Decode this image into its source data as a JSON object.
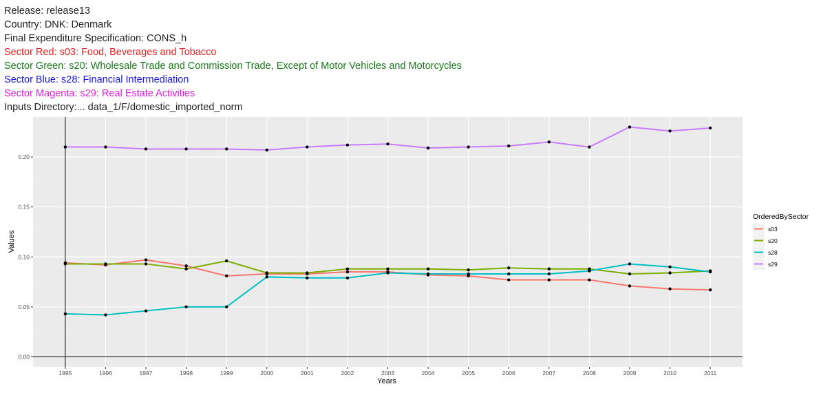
{
  "header": {
    "release": "Release: release13",
    "country": "Country: DNK: Denmark",
    "final_spec": "Final Expenditure Specification: CONS_h",
    "sector_red": "Sector Red: s03: Food, Beverages and Tobacco",
    "sector_green": "Sector Green: s20: Wholesale Trade and Commission Trade, Except of Motor Vehicles and Motorcycles",
    "sector_blue": "Sector Blue: s28: Financial Intermediation",
    "sector_magenta": "Sector Magenta: s29: Real Estate Activities",
    "inputs_dir": "Inputs Directory:... data_1/F/domestic_imported_norm"
  },
  "colors": {
    "red": "#e8201f",
    "green": "#1a7a1a",
    "blue": "#1a1adb",
    "magenta": "#e11ee1",
    "panel": "#ebebeb",
    "grid": "#ffffff"
  },
  "chart_data": {
    "type": "line",
    "xlabel": "Years",
    "ylabel": "Values",
    "x": [
      1995,
      1996,
      1997,
      1998,
      1999,
      2000,
      2001,
      2002,
      2003,
      2004,
      2005,
      2006,
      2007,
      2008,
      2009,
      2010,
      2011
    ],
    "ylim": [
      -0.01,
      0.24
    ],
    "yticks": [
      "0.00",
      "0.05",
      "0.10",
      "0.15",
      "0.20"
    ],
    "ytick_values": [
      0.0,
      0.05,
      0.1,
      0.15,
      0.2
    ],
    "legend_title": "OrderedBySector",
    "legend_position": "right",
    "grid": true,
    "series": [
      {
        "name": "s03",
        "color": "#f8766d",
        "values": [
          0.094,
          0.092,
          0.097,
          0.091,
          0.081,
          0.083,
          0.083,
          0.085,
          0.085,
          0.082,
          0.081,
          0.077,
          0.077,
          0.077,
          0.071,
          0.068,
          0.067
        ]
      },
      {
        "name": "s20",
        "color": "#7cae00",
        "values": [
          0.093,
          0.093,
          0.093,
          0.088,
          0.096,
          0.084,
          0.084,
          0.088,
          0.088,
          0.088,
          0.087,
          0.089,
          0.088,
          0.088,
          0.083,
          0.084,
          0.086
        ]
      },
      {
        "name": "s28",
        "color": "#00bfc4",
        "values": [
          0.043,
          0.042,
          0.046,
          0.05,
          0.05,
          0.08,
          0.079,
          0.079,
          0.084,
          0.083,
          0.083,
          0.083,
          0.083,
          0.086,
          0.093,
          0.09,
          0.085
        ]
      },
      {
        "name": "s29",
        "color": "#c77cff",
        "values": [
          0.21,
          0.21,
          0.208,
          0.208,
          0.208,
          0.207,
          0.21,
          0.212,
          0.213,
          0.209,
          0.21,
          0.211,
          0.215,
          0.21,
          0.23,
          0.226,
          0.229
        ]
      }
    ]
  }
}
